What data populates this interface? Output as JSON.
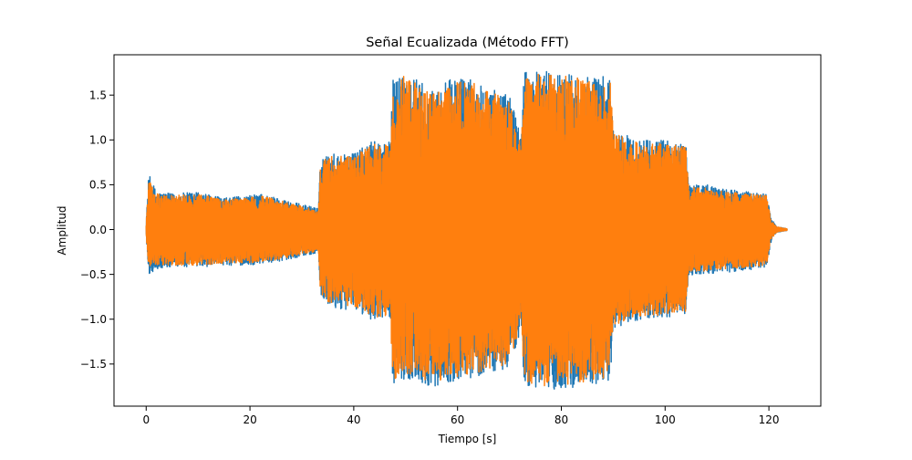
{
  "chart_data": {
    "type": "line",
    "title": "Señal Ecualizada (Método FFT)",
    "xlabel": "Tiempo [s]",
    "ylabel": "Amplitud",
    "xlim": [
      -6.2,
      130.0
    ],
    "ylim": [
      -1.97,
      1.95
    ],
    "xticks": [
      0,
      20,
      40,
      60,
      80,
      100,
      120
    ],
    "yticks": [
      -1.5,
      -1.0,
      -0.5,
      0.0,
      0.5,
      1.0,
      1.5
    ],
    "xtick_labels": [
      "0",
      "20",
      "40",
      "60",
      "80",
      "100",
      "120"
    ],
    "ytick_labels": [
      "−1.5",
      "−1.0",
      "−0.5",
      "0.0",
      "0.5",
      "1.0",
      "1.5"
    ],
    "grid": false,
    "legend": "none",
    "series": [
      {
        "color": "#1f77b4",
        "envelope": {
          "t": [
            0.0,
            0.5,
            2,
            5,
            10,
            15,
            20,
            22,
            25,
            30,
            33.2,
            33.6,
            36,
            40,
            44,
            47.0,
            47.6,
            50,
            55,
            60,
            65,
            70,
            72.3,
            72.8,
            77,
            80,
            85,
            89.5,
            90.0,
            94,
            100,
            104.0,
            104.5,
            108,
            112,
            116,
            119.5,
            120.5,
            121.5,
            123.5
          ],
          "pos": [
            0.1,
            0.62,
            0.42,
            0.4,
            0.42,
            0.35,
            0.38,
            0.4,
            0.36,
            0.28,
            0.24,
            0.8,
            0.85,
            0.85,
            1.0,
            0.98,
            1.7,
            1.78,
            1.55,
            1.72,
            1.65,
            1.5,
            1.1,
            1.75,
            1.78,
            1.75,
            1.72,
            1.7,
            1.12,
            1.02,
            1.0,
            0.96,
            0.52,
            0.5,
            0.45,
            0.42,
            0.4,
            0.12,
            0.03,
            0.01
          ],
          "neg": [
            -0.1,
            -0.5,
            -0.45,
            -0.42,
            -0.42,
            -0.4,
            -0.4,
            -0.38,
            -0.36,
            -0.3,
            -0.26,
            -0.8,
            -0.88,
            -0.9,
            -1.02,
            -1.0,
            -1.78,
            -1.65,
            -1.75,
            -1.7,
            -1.62,
            -1.55,
            -1.12,
            -1.75,
            -1.8,
            -1.78,
            -1.74,
            -1.7,
            -1.12,
            -1.02,
            -0.98,
            -0.96,
            -0.52,
            -0.5,
            -0.48,
            -0.45,
            -0.43,
            -0.12,
            -0.03,
            -0.01
          ]
        }
      },
      {
        "color": "#ff7f0e",
        "envelope": {
          "t": [
            0.0,
            0.5,
            2,
            5,
            10,
            15,
            20,
            22,
            25,
            30,
            33.2,
            33.6,
            36,
            40,
            44,
            47.0,
            47.6,
            50,
            55,
            60,
            65,
            70,
            72.3,
            72.8,
            77,
            80,
            85,
            89.5,
            90.0,
            94,
            100,
            104.0,
            104.5,
            108,
            112,
            116,
            119.5,
            120.5,
            121.5,
            123.5
          ],
          "pos": [
            0.08,
            0.55,
            0.4,
            0.38,
            0.4,
            0.33,
            0.36,
            0.38,
            0.34,
            0.26,
            0.22,
            0.76,
            0.82,
            0.82,
            0.96,
            0.95,
            1.65,
            1.72,
            1.5,
            1.68,
            1.62,
            1.45,
            1.05,
            1.72,
            1.74,
            1.72,
            1.68,
            1.66,
            1.08,
            0.98,
            0.96,
            0.92,
            0.48,
            0.46,
            0.42,
            0.4,
            0.38,
            0.1,
            0.03,
            0.01
          ],
          "neg": [
            -0.08,
            -0.46,
            -0.42,
            -0.4,
            -0.4,
            -0.38,
            -0.38,
            -0.36,
            -0.34,
            -0.28,
            -0.24,
            -0.76,
            -0.84,
            -0.86,
            -0.98,
            -0.96,
            -1.72,
            -1.6,
            -1.7,
            -1.66,
            -1.58,
            -1.5,
            -1.08,
            -1.7,
            -1.76,
            -1.74,
            -1.7,
            -1.66,
            -1.08,
            -0.98,
            -0.95,
            -0.92,
            -0.48,
            -0.46,
            -0.44,
            -0.42,
            -0.4,
            -0.1,
            -0.03,
            -0.01
          ]
        }
      }
    ]
  }
}
